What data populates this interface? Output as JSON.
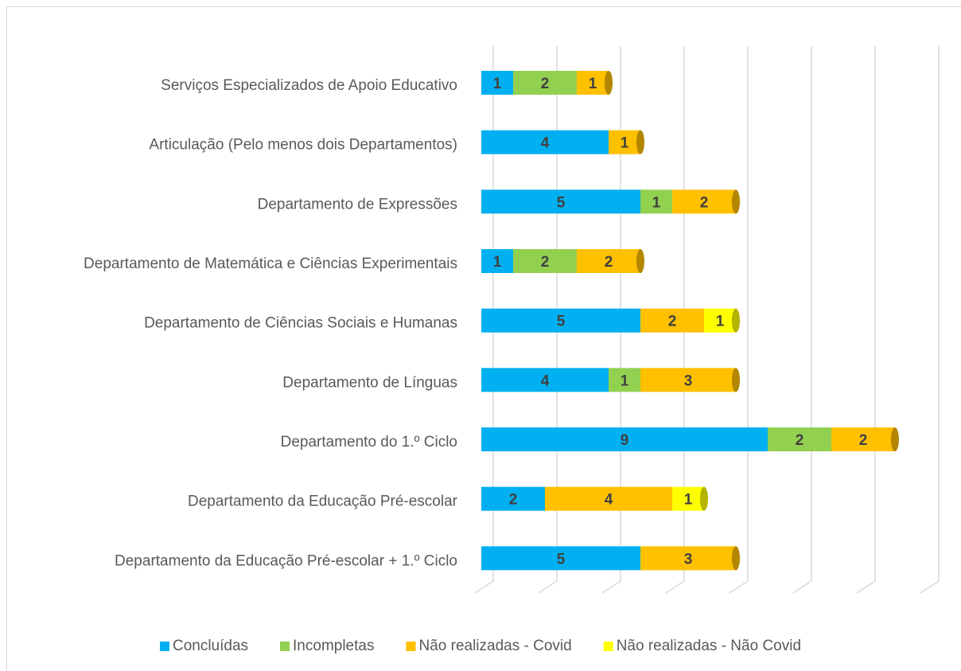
{
  "chart_data": {
    "type": "bar",
    "orientation": "horizontal",
    "stacked": true,
    "categories": [
      "Serviços Especializados de Apoio Educativo",
      "Articulação (Pelo menos dois Departamentos)",
      "Departamento de Expressões",
      "Departamento de Matemática e Ciências Experimentais",
      "Departamento de Ciências Sociais e Humanas ",
      "Departamento de Línguas",
      "Departamento do 1.º Ciclo ",
      "Departamento da Educação Pré-escolar",
      "Departamento da Educação Pré-escolar + 1.º Ciclo"
    ],
    "series": [
      {
        "name": "Concluídas",
        "color": "#00b0f0",
        "values": [
          1,
          4,
          5,
          1,
          5,
          4,
          9,
          2,
          5
        ]
      },
      {
        "name": "Incompletas",
        "color": "#92d050",
        "values": [
          2,
          null,
          1,
          2,
          null,
          1,
          2,
          null,
          null
        ]
      },
      {
        "name": "Não realizadas - Covid",
        "color": "#ffc000",
        "values": [
          1,
          1,
          2,
          2,
          2,
          3,
          2,
          4,
          3
        ]
      },
      {
        "name": "Não realizadas - Não Covid",
        "color": "#ffff00",
        "values": [
          null,
          null,
          null,
          null,
          1,
          null,
          null,
          1,
          null
        ]
      }
    ],
    "xlim": [
      0,
      14
    ],
    "xticks": [
      0,
      2,
      4,
      6,
      8,
      10,
      12,
      14
    ],
    "grid": true,
    "legend": "bottom"
  }
}
